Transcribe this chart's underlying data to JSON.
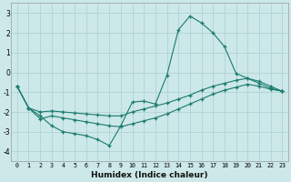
{
  "xlabel": "Humidex (Indice chaleur)",
  "background_color": "#cce8e8",
  "grid_color": "#aacfcf",
  "line_color": "#1a7a6e",
  "xlim": [
    -0.5,
    23.5
  ],
  "ylim": [
    -4.5,
    3.5
  ],
  "yticks": [
    -4,
    -3,
    -2,
    -1,
    0,
    1,
    2,
    3
  ],
  "xticks": [
    0,
    1,
    2,
    3,
    4,
    5,
    6,
    7,
    8,
    9,
    10,
    11,
    12,
    13,
    14,
    15,
    16,
    17,
    18,
    19,
    20,
    21,
    22,
    23
  ],
  "series": [
    {
      "x": [
        0,
        1,
        2,
        3,
        4,
        5,
        6,
        7,
        8,
        9,
        10,
        11,
        12,
        13,
        14,
        15,
        16,
        17,
        18,
        19,
        20,
        21,
        22,
        23
      ],
      "y": [
        -0.7,
        -1.8,
        -2.2,
        -2.7,
        -3.0,
        -3.1,
        -3.2,
        -3.4,
        -3.7,
        -2.7,
        -1.5,
        -1.45,
        -1.6,
        -0.15,
        2.15,
        2.85,
        2.5,
        2.0,
        1.3,
        -0.05,
        -0.3,
        -0.55,
        -0.8,
        -0.95
      ]
    },
    {
      "x": [
        0,
        1,
        2,
        3,
        4,
        5,
        6,
        7,
        8,
        9,
        10,
        11,
        12,
        13,
        14,
        15,
        16,
        17,
        18,
        19,
        20,
        21,
        22,
        23
      ],
      "y": [
        -0.7,
        -1.8,
        -2.0,
        -1.95,
        -2.0,
        -2.05,
        -2.1,
        -2.15,
        -2.2,
        -2.2,
        -2.0,
        -1.85,
        -1.7,
        -1.55,
        -1.35,
        -1.15,
        -0.9,
        -0.7,
        -0.55,
        -0.4,
        -0.3,
        -0.45,
        -0.7,
        -0.95
      ]
    },
    {
      "x": [
        0,
        1,
        2,
        3,
        4,
        5,
        6,
        7,
        8,
        9,
        10,
        11,
        12,
        13,
        14,
        15,
        16,
        17,
        18,
        19,
        20,
        21,
        22,
        23
      ],
      "y": [
        -0.7,
        -1.8,
        -2.35,
        -2.2,
        -2.3,
        -2.4,
        -2.5,
        -2.6,
        -2.7,
        -2.75,
        -2.6,
        -2.45,
        -2.3,
        -2.1,
        -1.85,
        -1.6,
        -1.35,
        -1.1,
        -0.9,
        -0.75,
        -0.6,
        -0.7,
        -0.85,
        -0.95
      ]
    }
  ]
}
